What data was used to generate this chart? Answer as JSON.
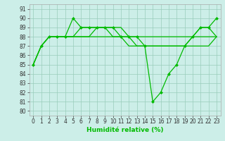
{
  "lines": [
    {
      "x": [
        0,
        1,
        2,
        3,
        4,
        5,
        6,
        7,
        8,
        9,
        10,
        11,
        12,
        13,
        14,
        15,
        16,
        17,
        18,
        19,
        20,
        21,
        22,
        23
      ],
      "y": [
        85,
        87,
        88,
        88,
        88,
        90,
        89,
        89,
        89,
        89,
        89,
        88,
        88,
        88,
        87,
        81,
        82,
        84,
        85,
        87,
        88,
        89,
        89,
        90
      ],
      "marker": "D",
      "markersize": 2.0
    },
    {
      "x": [
        0,
        1,
        2,
        3,
        4,
        5,
        6,
        7,
        8,
        9,
        10,
        11,
        12,
        13,
        14,
        15,
        16,
        17,
        18,
        19,
        20,
        21,
        22,
        23
      ],
      "y": [
        85,
        87,
        88,
        88,
        88,
        88,
        88,
        88,
        89,
        89,
        88,
        88,
        88,
        87,
        87,
        87,
        87,
        87,
        87,
        87,
        88,
        89,
        89,
        88
      ],
      "marker": null,
      "markersize": 0
    },
    {
      "x": [
        0,
        1,
        2,
        3,
        4,
        5,
        6,
        7,
        8,
        9,
        10,
        11,
        12,
        13,
        14,
        15,
        16,
        17,
        18,
        19,
        20,
        21,
        22,
        23
      ],
      "y": [
        85,
        87,
        88,
        88,
        88,
        88,
        88,
        88,
        88,
        88,
        88,
        88,
        87,
        87,
        87,
        87,
        87,
        87,
        87,
        87,
        87,
        87,
        87,
        88
      ],
      "marker": null,
      "markersize": 0
    },
    {
      "x": [
        4,
        5,
        6,
        7,
        8,
        9,
        10,
        11,
        12,
        13,
        14,
        15,
        16,
        17,
        18,
        19,
        20,
        21,
        22,
        23
      ],
      "y": [
        88,
        88,
        89,
        89,
        89,
        89,
        89,
        89,
        88,
        88,
        88,
        88,
        88,
        88,
        88,
        88,
        88,
        88,
        88,
        88
      ],
      "marker": null,
      "markersize": 0
    }
  ],
  "line_color": "#00bb00",
  "bg_color": "#cceee8",
  "grid_color": "#99ccbb",
  "xlabel": "Humidité relative (%)",
  "ylabel_ticks": [
    80,
    81,
    82,
    83,
    84,
    85,
    86,
    87,
    88,
    89,
    90,
    91
  ],
  "xticks": [
    0,
    1,
    2,
    3,
    4,
    5,
    6,
    7,
    8,
    9,
    10,
    11,
    12,
    13,
    14,
    15,
    16,
    17,
    18,
    19,
    20,
    21,
    22,
    23
  ],
  "xlim": [
    -0.5,
    23.5
  ],
  "ylim": [
    79.5,
    91.5
  ],
  "xlabel_fontsize": 6.5,
  "tick_fontsize": 5.5,
  "line_width": 0.9
}
